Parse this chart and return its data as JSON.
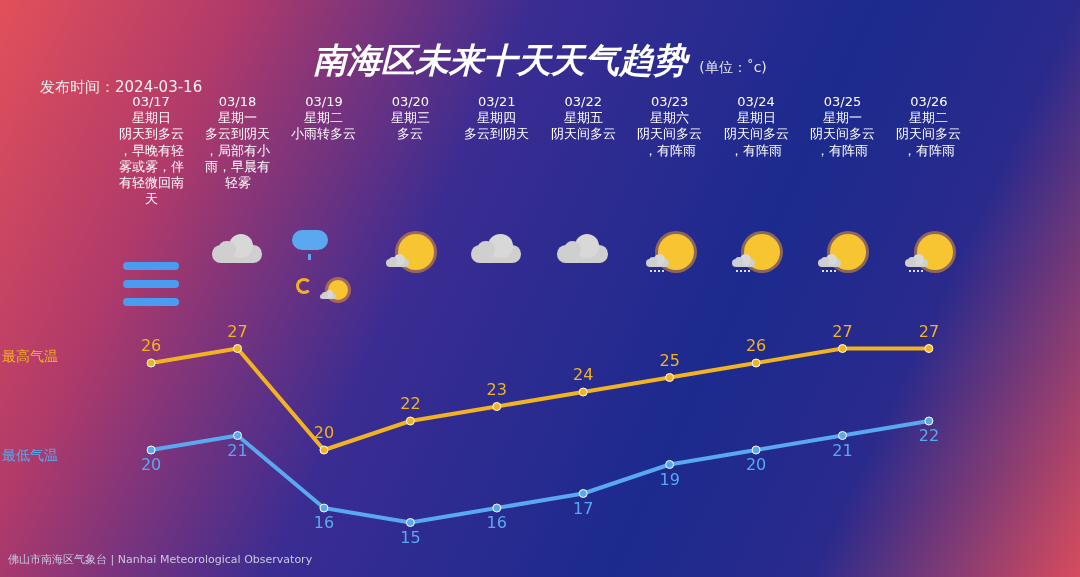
{
  "chart_data": {
    "type": "line",
    "title": "南海区未来十天天气趋势",
    "subtitle": "(单位：˚c)",
    "categories": [
      "03/17星期日阴天到多云，早晚有轻雾或雾，伴有轻微回南天",
      "03/18星期一多云到阴天，局部有小雨，早晨有轻雾",
      "03/19星期二小雨转多云",
      "03/20星期三多云",
      "03/21星期四多云到阴天",
      "03/22星期五阴天间多云",
      "03/23星期六阴天间多云，有阵雨",
      "03/24星期日阴天间多云，有阵雨",
      "03/25星期一阴天间多云，有阵雨",
      "03/26星期二阴天间多云，有阵雨"
    ],
    "series": [
      {
        "name": "最高气温",
        "color": "#f2b322",
        "values": [
          26,
          27,
          20,
          22,
          23,
          24,
          25,
          26,
          27,
          27
        ]
      },
      {
        "name": "最低气温",
        "color": "#5aa8f0",
        "values": [
          20,
          21,
          16,
          15,
          16,
          17,
          19,
          20,
          21,
          22
        ]
      }
    ],
    "data_labels": true,
    "legend": false,
    "grid": false,
    "marker": "circle",
    "tick_labels": "x",
    "annotations": [
      "发布时间：2024-03-16",
      "佛山市南海区气象台 | Nanhai Meteorological Observatory"
    ]
  }
}
